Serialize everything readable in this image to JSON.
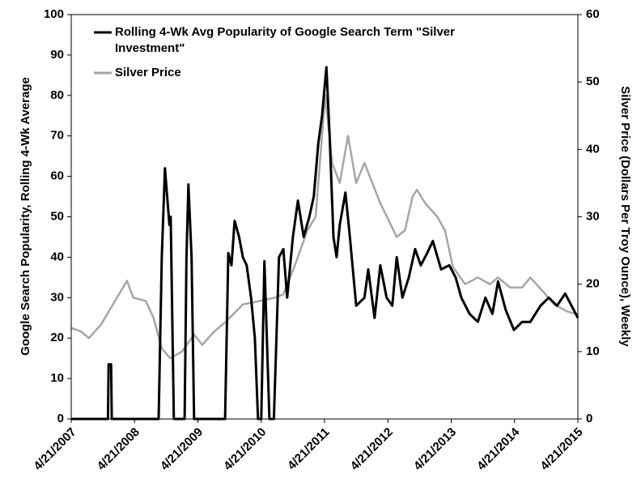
{
  "chart_data": {
    "type": "line",
    "y_label": "Google Search Popularity,  Rolling  4-Wk Average",
    "y2_label": "Silver Price (Dollars Per Troy Ounce), Weekly",
    "legend": "upper left",
    "xlim": [
      2007.3,
      2015.3
    ],
    "xticks": [
      {
        "value": 2007.3,
        "label": "4/21/2007"
      },
      {
        "value": 2008.3,
        "label": "4/21/2008"
      },
      {
        "value": 2009.3,
        "label": "4/21/2009"
      },
      {
        "value": 2010.3,
        "label": "4/21/2010"
      },
      {
        "value": 2011.3,
        "label": "4/21/2011"
      },
      {
        "value": 2012.3,
        "label": "4/21/2012"
      },
      {
        "value": 2013.3,
        "label": "4/21/2013"
      },
      {
        "value": 2014.3,
        "label": "4/21/2014"
      },
      {
        "value": 2015.3,
        "label": "4/21/2015"
      }
    ],
    "ylim": [
      0,
      100
    ],
    "yticks": [
      0,
      10,
      20,
      30,
      40,
      50,
      60,
      70,
      80,
      90,
      100
    ],
    "y2lim": [
      0,
      60
    ],
    "y2ticks": [
      0,
      10,
      20,
      30,
      40,
      50,
      60
    ],
    "series": [
      {
        "name": "Rolling 4-Wk Avg Popularity of Google Search Term \"Silver Investment\"",
        "color": "#000000",
        "axis": "y",
        "x": [
          2007.3,
          2007.88,
          2007.89,
          2007.93,
          2007.94,
          2008.68,
          2008.73,
          2008.78,
          2008.85,
          2008.87,
          2008.92,
          2009.09,
          2009.12,
          2009.15,
          2009.2,
          2009.24,
          2009.73,
          2009.78,
          2009.83,
          2009.88,
          2009.95,
          2010.01,
          2010.07,
          2010.14,
          2010.2,
          2010.25,
          2010.3,
          2010.35,
          2010.43,
          2010.5,
          2010.58,
          2010.65,
          2010.71,
          2010.8,
          2010.88,
          2010.97,
          2011.06,
          2011.13,
          2011.2,
          2011.26,
          2011.33,
          2011.38,
          2011.44,
          2011.49,
          2011.54,
          2011.63,
          2011.7,
          2011.8,
          2011.93,
          2011.99,
          2012.09,
          2012.18,
          2012.28,
          2012.37,
          2012.44,
          2012.53,
          2012.63,
          2012.73,
          2012.82,
          2012.92,
          2013.01,
          2013.14,
          2013.27,
          2013.37,
          2013.46,
          2013.59,
          2013.72,
          2013.84,
          2013.95,
          2014.04,
          2014.16,
          2014.29,
          2014.42,
          2014.55,
          2014.71,
          2014.84,
          2014.97,
          2015.1,
          2015.2,
          2015.3
        ],
        "values": [
          0,
          0,
          13.5,
          13.5,
          0,
          0,
          40,
          62,
          48,
          50,
          0,
          0,
          40,
          58,
          40,
          0,
          0,
          41,
          38,
          49,
          45,
          40,
          38,
          30,
          20,
          0,
          0,
          39,
          0,
          0,
          40,
          42,
          30,
          45,
          54,
          45,
          50,
          55,
          68,
          75,
          87,
          70,
          45,
          40,
          48,
          56,
          45,
          28,
          30,
          37,
          25,
          38,
          30,
          28,
          40,
          30,
          35,
          42,
          38,
          41,
          44,
          37,
          38,
          35,
          30,
          26,
          24,
          30,
          26,
          34,
          27,
          22,
          24,
          24,
          28,
          30,
          28,
          31,
          28,
          25
        ]
      },
      {
        "name": "Silver Price",
        "color": "#a6a6a6",
        "axis": "y2",
        "x": [
          2007.3,
          2007.45,
          2007.58,
          2007.77,
          2007.96,
          2008.18,
          2008.28,
          2008.48,
          2008.6,
          2008.73,
          2008.86,
          2009.05,
          2009.24,
          2009.37,
          2009.56,
          2009.75,
          2010.01,
          2010.27,
          2010.52,
          2010.65,
          2010.84,
          2011.03,
          2011.16,
          2011.31,
          2011.42,
          2011.54,
          2011.67,
          2011.8,
          2011.93,
          2012.18,
          2012.44,
          2012.57,
          2012.69,
          2012.76,
          2012.89,
          2013.08,
          2013.2,
          2013.33,
          2013.52,
          2013.72,
          2013.91,
          2014.04,
          2014.23,
          2014.42,
          2014.55,
          2014.74,
          2014.93,
          2015.12,
          2015.3
        ],
        "values": [
          13.5,
          13,
          12,
          14,
          17,
          20.5,
          18,
          17.5,
          15,
          10.5,
          9,
          10,
          12.5,
          11,
          13,
          14.5,
          17,
          17.5,
          18,
          18.5,
          23,
          28,
          30,
          48,
          38,
          35,
          42,
          35,
          38,
          32,
          27,
          28,
          33,
          34,
          32,
          30,
          28,
          22.5,
          20,
          21,
          20,
          21,
          19.5,
          19.5,
          21,
          19,
          17,
          16,
          15.5
        ]
      }
    ]
  }
}
